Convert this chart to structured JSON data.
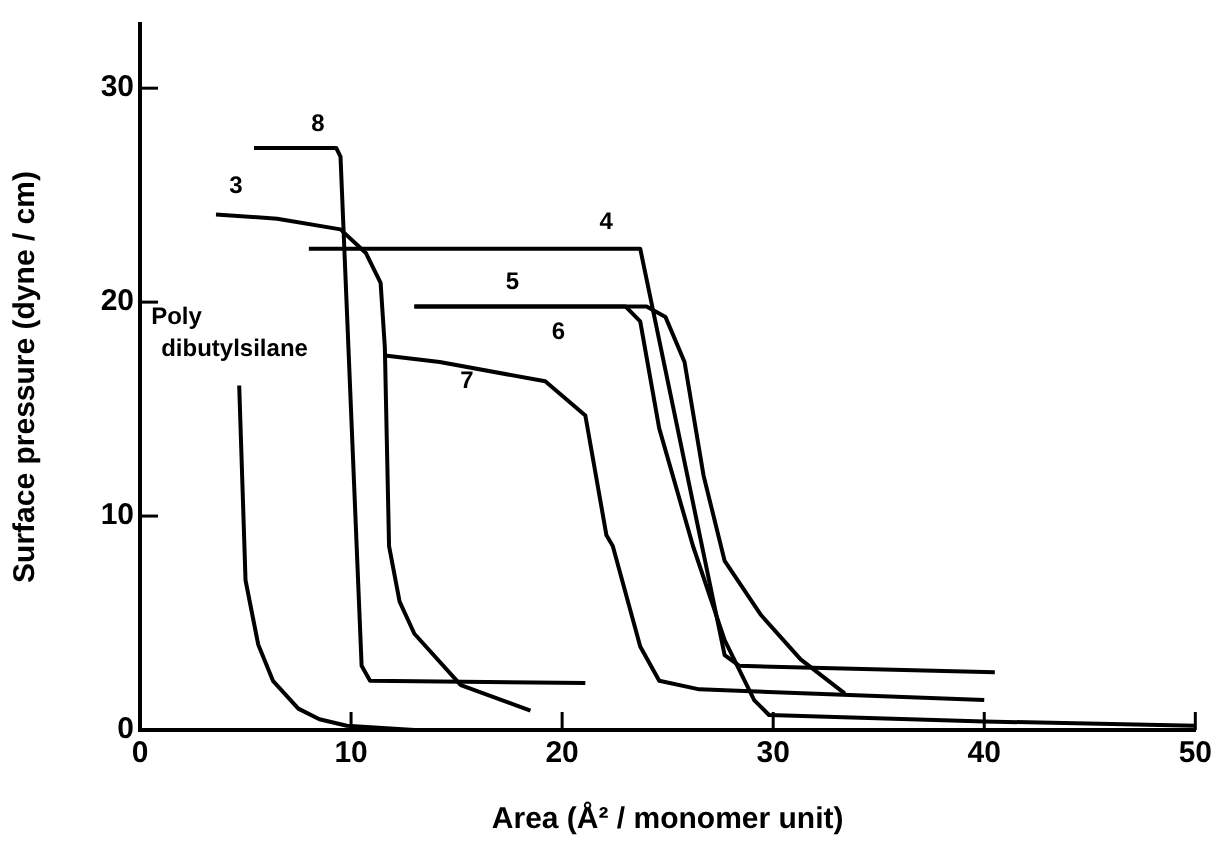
{
  "chart_data": {
    "type": "line",
    "xlabel": "Area (Å² / monomer unit)",
    "ylabel": "Surface pressure (dyne / cm)",
    "xlim": [
      0,
      50
    ],
    "ylim": [
      0,
      33
    ],
    "xticks": [
      0,
      10,
      20,
      30,
      40,
      50
    ],
    "yticks": [
      0,
      10,
      20,
      30
    ],
    "grid": false,
    "legend": false,
    "line_style": "solid",
    "series": [
      {
        "name": "Poly\ndibutylsilane",
        "color": "#000000",
        "x": [
          4.7,
          5.0,
          5.6,
          6.3,
          7.5,
          8.5,
          9.8,
          13
        ],
        "values": [
          16.1,
          7.0,
          4.0,
          2.3,
          1.0,
          0.5,
          0.2,
          0
        ]
      },
      {
        "name": "3",
        "color": "#000000",
        "x": [
          3.6,
          6.5,
          9.5,
          10.7,
          11.4,
          11.6,
          11.8,
          12.3,
          13.0,
          15.2,
          18.5
        ],
        "values": [
          24.1,
          23.9,
          23.4,
          22.3,
          20.9,
          17.9,
          8.6,
          6.0,
          4.5,
          2.1,
          0.9
        ]
      },
      {
        "name": "4",
        "color": "#000000",
        "x": [
          8.0,
          23.7,
          27.7,
          28.4,
          40.5
        ],
        "values": [
          22.5,
          22.5,
          3.5,
          3.0,
          2.7
        ]
      },
      {
        "name": "5",
        "color": "#000000",
        "x": [
          13.0,
          23.0,
          23.7,
          24.6,
          26.2,
          27.7,
          29.1,
          29.8,
          40,
          50
        ],
        "values": [
          19.8,
          19.8,
          19.1,
          14.1,
          8.6,
          4.2,
          1.4,
          0.7,
          0.4,
          0.2
        ]
      },
      {
        "name": "6",
        "color": "#000000",
        "x": [
          13.0,
          24.0,
          24.9,
          25.8,
          26.7,
          27.7,
          29.4,
          31.3,
          33.4
        ],
        "values": [
          19.8,
          19.8,
          19.3,
          17.2,
          11.9,
          7.9,
          5.4,
          3.3,
          1.7
        ]
      },
      {
        "name": "7",
        "color": "#000000",
        "x": [
          11.6,
          14.2,
          19.2,
          21.1,
          22.1,
          22.4,
          23.7,
          24.6,
          26.5,
          40.0
        ],
        "values": [
          17.5,
          17.2,
          16.3,
          14.7,
          9.1,
          8.6,
          3.9,
          2.3,
          1.9,
          1.4
        ]
      },
      {
        "name": "8",
        "color": "#000000",
        "x": [
          5.4,
          9.3,
          9.5,
          10.5,
          10.9,
          21.1
        ],
        "values": [
          27.2,
          27.2,
          26.8,
          3.0,
          2.3,
          2.2
        ]
      }
    ]
  }
}
